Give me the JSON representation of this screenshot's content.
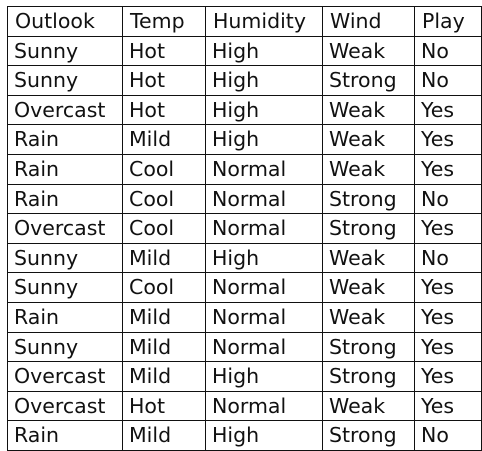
{
  "table": {
    "headers": [
      "Outlook",
      "Temp",
      "Humidity",
      "Wind",
      "Play"
    ],
    "rows": [
      [
        "Sunny",
        "Hot",
        "High",
        "Weak",
        "No"
      ],
      [
        "Sunny",
        "Hot",
        "High",
        "Strong",
        "No"
      ],
      [
        "Overcast",
        "Hot",
        "High",
        "Weak",
        "Yes"
      ],
      [
        "Rain",
        "Mild",
        "High",
        "Weak",
        "Yes"
      ],
      [
        "Rain",
        "Cool",
        "Normal",
        "Weak",
        "Yes"
      ],
      [
        "Rain",
        "Cool",
        "Normal",
        "Strong",
        "No"
      ],
      [
        "Overcast",
        "Cool",
        "Normal",
        "Strong",
        "Yes"
      ],
      [
        "Sunny",
        "Mild",
        "High",
        "Weak",
        "No"
      ],
      [
        "Sunny",
        "Cool",
        "Normal",
        "Weak",
        "Yes"
      ],
      [
        "Rain",
        "Mild",
        "Normal",
        "Weak",
        "Yes"
      ],
      [
        "Sunny",
        "Mild",
        "Normal",
        "Strong",
        "Yes"
      ],
      [
        "Overcast",
        "Mild",
        "High",
        "Strong",
        "Yes"
      ],
      [
        "Overcast",
        "Hot",
        "Normal",
        "Weak",
        "Yes"
      ],
      [
        "Rain",
        "Mild",
        "High",
        "Strong",
        "No"
      ]
    ]
  }
}
